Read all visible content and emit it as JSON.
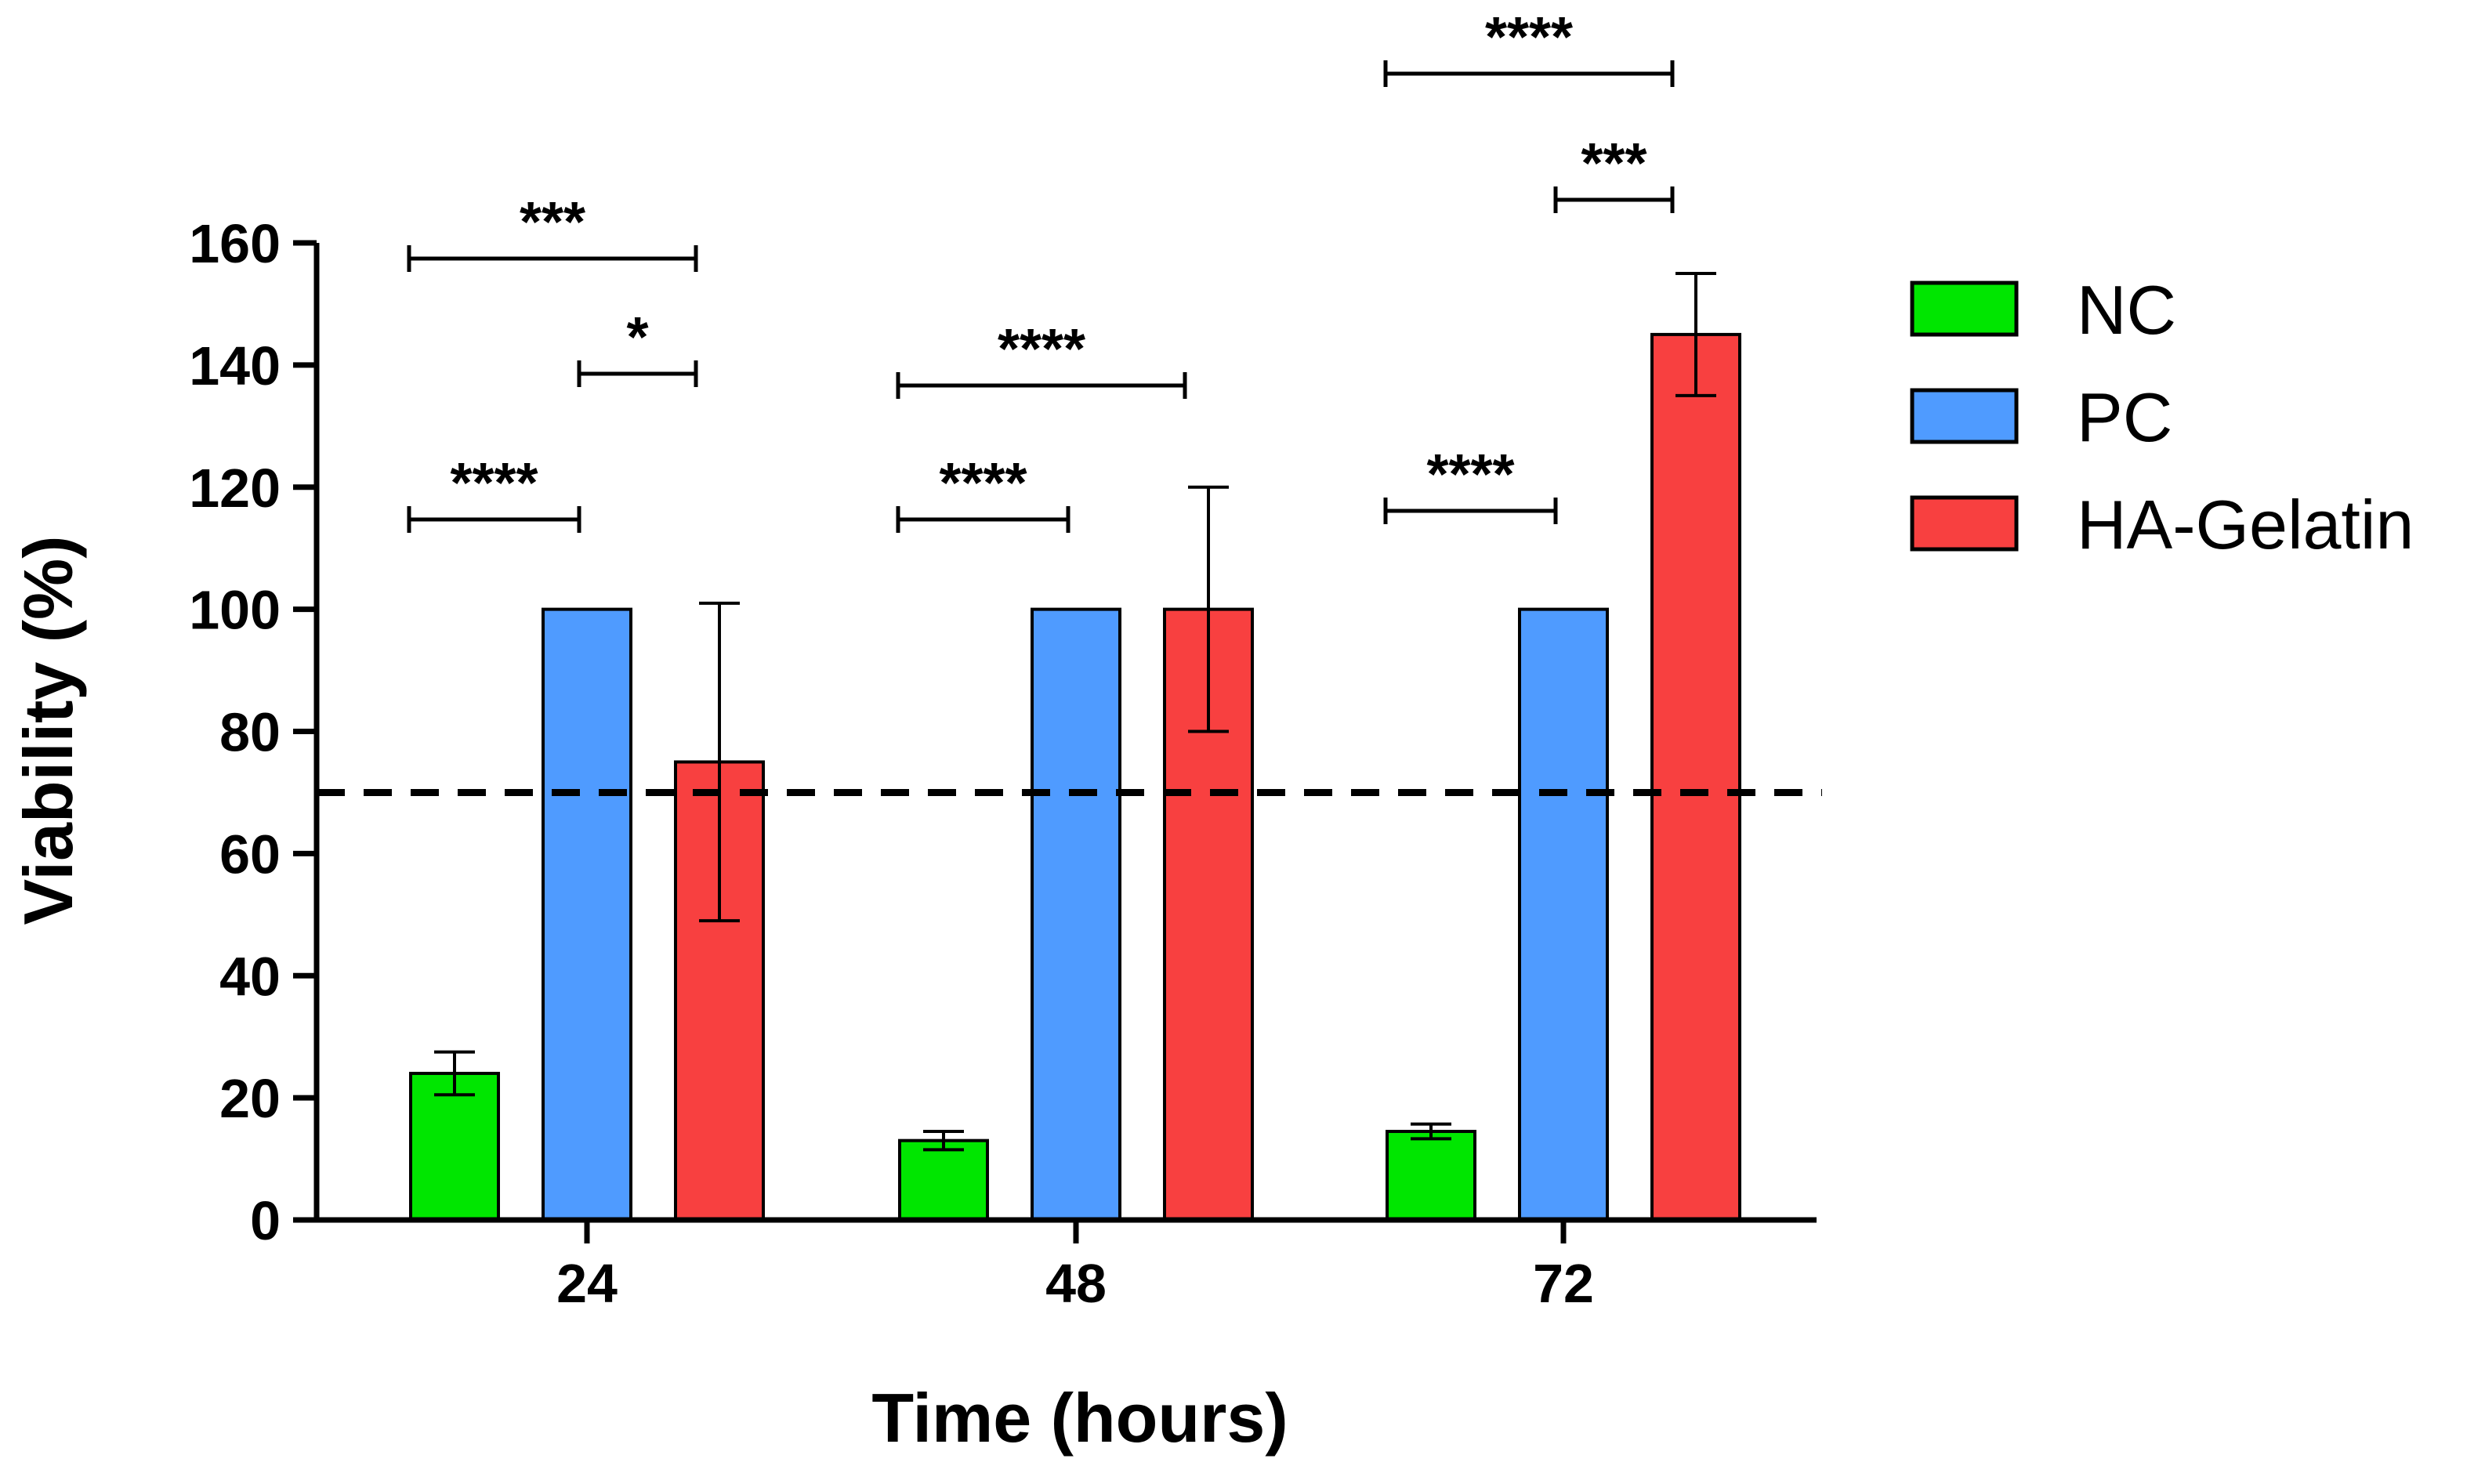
{
  "chart_data": {
    "type": "bar",
    "title": "",
    "xlabel": "Time (hours)",
    "ylabel": "Viability (%)",
    "ylim": [
      0,
      160
    ],
    "yticks": [
      0,
      20,
      40,
      60,
      80,
      100,
      120,
      140,
      160
    ],
    "categories": [
      "24",
      "48",
      "72"
    ],
    "series": [
      {
        "name": "NC",
        "color": "#00e600",
        "values": [
          24,
          13,
          14.5
        ],
        "errors": [
          3.5,
          1.5,
          1.2
        ]
      },
      {
        "name": "PC",
        "color": "#4f9bff",
        "values": [
          100,
          100,
          100
        ],
        "errors": [
          0,
          0,
          0
        ]
      },
      {
        "name": "HA-Gelatin",
        "color": "#f84040",
        "values": [
          75,
          100,
          145
        ],
        "errors": [
          26,
          20,
          10
        ]
      }
    ],
    "reference_line": {
      "value": 70,
      "style": "dashed"
    },
    "significance": [
      {
        "category": 0,
        "from": 0,
        "to": 1,
        "label": "****"
      },
      {
        "category": 0,
        "from": 1,
        "to": 2,
        "label": "*"
      },
      {
        "category": 0,
        "from": 0,
        "to": 2,
        "label": "***"
      },
      {
        "category": 1,
        "from": 0,
        "to": 1,
        "label": "****"
      },
      {
        "category": 1,
        "from": 0,
        "to": 2,
        "label": "****"
      },
      {
        "category": 2,
        "from": 0,
        "to": 1,
        "label": "****"
      },
      {
        "category": 2,
        "from": 1,
        "to": 2,
        "label": "***"
      },
      {
        "category": 2,
        "from": 0,
        "to": 2,
        "label": "****"
      }
    ],
    "legend_position": "right"
  }
}
